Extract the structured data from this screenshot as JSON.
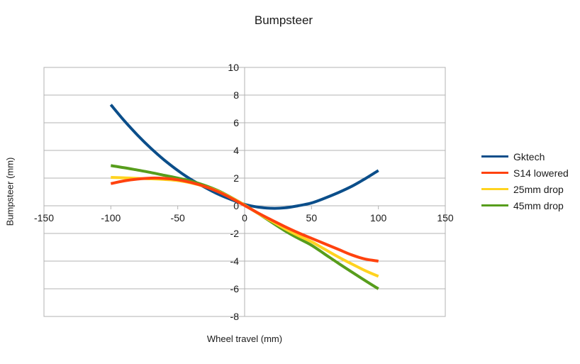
{
  "chart_data": {
    "type": "line",
    "title": "Bumpsteer",
    "xlabel": "Wheel travel (mm)",
    "ylabel": "Bumpsteer (mm)",
    "xlim": [
      -150,
      150
    ],
    "ylim": [
      -8,
      10
    ],
    "x_ticks": [
      -150,
      -100,
      -50,
      0,
      50,
      100,
      150
    ],
    "y_ticks": [
      10,
      8,
      6,
      4,
      2,
      0,
      -2,
      -4,
      -6,
      -8
    ],
    "grid": "horizontal",
    "legend_position": "right",
    "x": [
      -100,
      -90,
      -80,
      -70,
      -60,
      -50,
      -40,
      -30,
      -20,
      -10,
      0,
      10,
      20,
      30,
      40,
      50,
      60,
      70,
      80,
      90,
      100
    ],
    "series": [
      {
        "name": "Gktech",
        "color": "#0b4e8a",
        "values": [
          7.3,
          6.15,
          5.1,
          4.15,
          3.3,
          2.55,
          1.9,
          1.35,
          0.85,
          0.45,
          0.1,
          -0.1,
          -0.18,
          -0.15,
          0.0,
          0.2,
          0.55,
          0.95,
          1.4,
          1.95,
          2.55
        ]
      },
      {
        "name": "S14 lowered",
        "color": "#ff420e",
        "values": [
          1.6,
          1.8,
          1.93,
          2.0,
          1.98,
          1.88,
          1.68,
          1.4,
          1.02,
          0.55,
          0.02,
          -0.52,
          -1.02,
          -1.5,
          -1.95,
          -2.35,
          -2.75,
          -3.15,
          -3.55,
          -3.85,
          -4.0
        ]
      },
      {
        "name": "25mm drop",
        "color": "#ffd320",
        "values": [
          2.05,
          2.02,
          1.98,
          1.95,
          1.9,
          1.82,
          1.65,
          1.4,
          1.05,
          0.58,
          0.05,
          -0.55,
          -1.1,
          -1.65,
          -2.15,
          -2.6,
          -3.15,
          -3.7,
          -4.2,
          -4.68,
          -5.1
        ]
      },
      {
        "name": "45mm drop",
        "color": "#579d1c",
        "values": [
          2.9,
          2.75,
          2.58,
          2.4,
          2.2,
          2.0,
          1.78,
          1.48,
          1.1,
          0.6,
          0.05,
          -0.55,
          -1.18,
          -1.8,
          -2.35,
          -2.85,
          -3.5,
          -4.15,
          -4.78,
          -5.4,
          -6.0
        ]
      }
    ],
    "colors": {
      "grid": "#b3b3b3",
      "axis": "#b3b3b3",
      "text": "#1a1a1a"
    }
  }
}
